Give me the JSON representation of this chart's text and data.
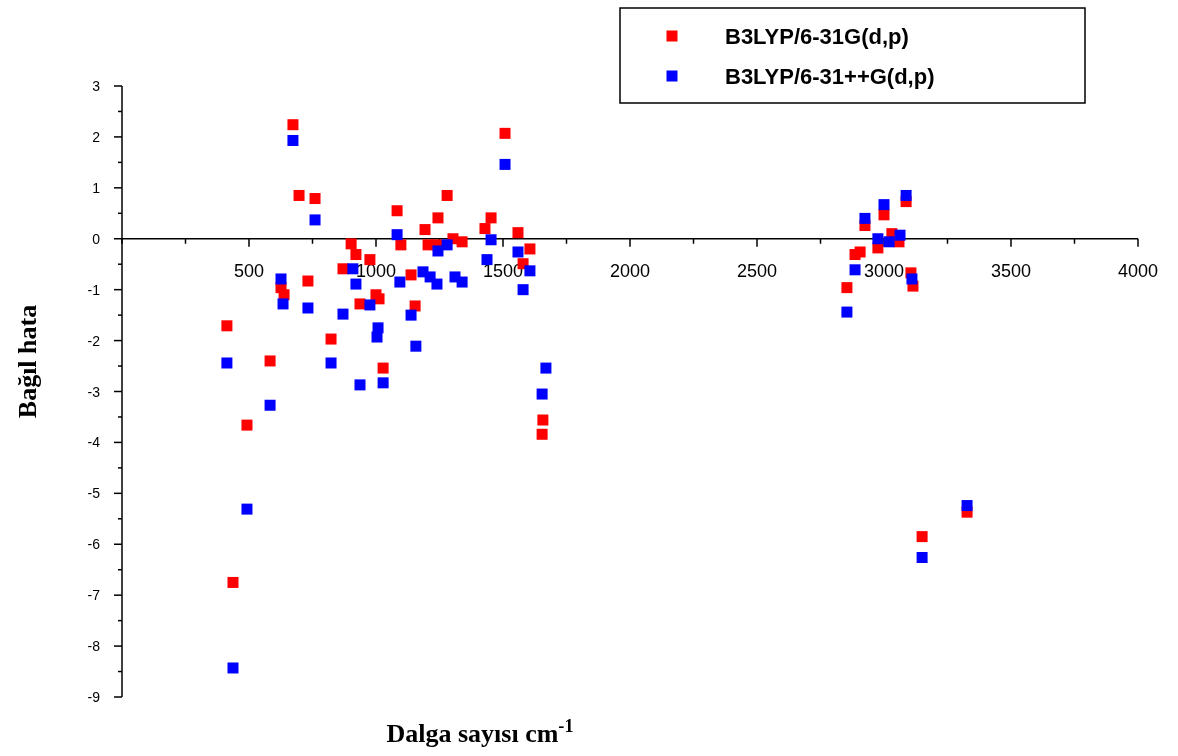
{
  "chart_data": {
    "type": "scatter",
    "xlabel": "Dalga sayısı cm$^{-1}$",
    "ylabel": "Bağıl hata",
    "xlim": [
      0,
      4000
    ],
    "ylim": [
      -9,
      3
    ],
    "xticks": [
      {
        "value": 0,
        "label": null
      },
      {
        "value": 250,
        "label": null
      },
      500,
      {
        "value": 750,
        "label": null
      },
      1000,
      {
        "value": 1250,
        "label": null
      },
      1500,
      {
        "value": 1750,
        "label": null
      },
      2000,
      {
        "value": 2250,
        "label": null
      },
      2500,
      {
        "value": 2750,
        "label": null
      },
      3000,
      {
        "value": 3250,
        "label": null
      },
      3500,
      {
        "value": 3750,
        "label": null
      },
      4000
    ],
    "yticks": [
      -9,
      {
        "value": -8.5,
        "label": null
      },
      -8,
      {
        "value": -7.5,
        "label": null
      },
      -7,
      {
        "value": -6.5,
        "label": null
      },
      -6,
      {
        "value": -5.5,
        "label": null
      },
      -5,
      {
        "value": -4.5,
        "label": null
      },
      -4,
      {
        "value": -3.5,
        "label": null
      },
      -3,
      {
        "value": -2.5,
        "label": null
      },
      -2,
      {
        "value": -1.5,
        "label": null
      },
      -1,
      {
        "value": -0.5,
        "label": null
      },
      0,
      {
        "value": 0.5,
        "label": null
      },
      1,
      {
        "value": 1.5,
        "label": null
      },
      2,
      {
        "value": 2.5,
        "label": null
      },
      3
    ],
    "marker": "square",
    "legend": "top right",
    "grid": false,
    "series": [
      {
        "name": "B3LYP/6-31G(d,p)",
        "color": "#ff0000",
        "x": [
          413,
          437,
          492,
          583,
          626,
          638,
          673,
          697,
          732,
          760,
          823,
          870,
          902,
          921,
          937,
          976,
          1000,
          1012,
          1028,
          1083,
          1098,
          1138,
          1154,
          1193,
          1205,
          1240,
          1244,
          1280,
          1303,
          1339,
          1429,
          1453,
          1508,
          1559,
          1579,
          1606,
          1654,
          1657,
          2854,
          2886,
          2906,
          2925,
          2976,
          3000,
          3031,
          3059,
          3087,
          3106,
          3114,
          3150,
          3327
        ],
        "values": [
          -1.71,
          -6.75,
          -3.66,
          -2.4,
          -0.96,
          -1.1,
          2.24,
          0.85,
          -0.83,
          0.79,
          -1.97,
          -0.59,
          -0.1,
          -0.31,
          -1.28,
          -0.41,
          -1.1,
          -1.18,
          -2.54,
          0.55,
          -0.12,
          -0.71,
          -1.32,
          0.18,
          -0.12,
          -0.12,
          0.41,
          0.85,
          0,
          -0.06,
          0.2,
          0.41,
          2.07,
          0.12,
          -0.49,
          -0.2,
          -3.84,
          -3.56,
          -0.96,
          -0.31,
          -0.26,
          0.26,
          -0.18,
          0.47,
          0.1,
          -0.06,
          0.73,
          -0.67,
          -0.93,
          -5.85,
          -5.37
        ]
      },
      {
        "name": "B3LYP/6-31++G(d,p)",
        "color": "#0000ff",
        "x": [
          413,
          437,
          492,
          583,
          626,
          634,
          673,
          732,
          760,
          823,
          870,
          909,
          921,
          937,
          976,
          1004,
          1008,
          1028,
          1083,
          1094,
          1138,
          1157,
          1185,
          1213,
          1240,
          1244,
          1280,
          1311,
          1339,
          1437,
          1453,
          1508,
          1559,
          1579,
          1606,
          1654,
          1669,
          2854,
          2886,
          2925,
          2976,
          3000,
          3020,
          3063,
          3087,
          3110,
          3150,
          3327
        ],
        "values": [
          -2.44,
          -8.43,
          -5.31,
          -3.27,
          -0.79,
          -1.28,
          1.93,
          -1.36,
          0.37,
          -2.44,
          -1.48,
          -0.59,
          -0.89,
          -2.87,
          -1.3,
          -1.93,
          -1.75,
          -2.83,
          0.08,
          -0.85,
          -1.5,
          -2.11,
          -0.65,
          -0.75,
          -0.89,
          -0.24,
          -0.12,
          -0.75,
          -0.85,
          -0.41,
          -0.02,
          1.46,
          -0.26,
          -1,
          -0.63,
          -3.05,
          -2.54,
          -1.44,
          -0.61,
          0.4,
          0,
          0.67,
          -0.06,
          0.07,
          0.85,
          -0.79,
          -6.26,
          -5.24
        ]
      }
    ]
  }
}
